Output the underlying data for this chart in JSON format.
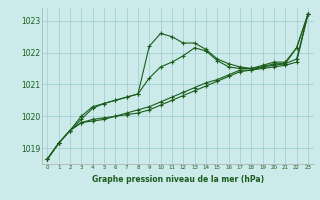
{
  "bg_color": "#cceaea",
  "grid_color": "#99cccc",
  "line_color": "#1a5c1a",
  "title": "Graphe pression niveau de la mer (hPa)",
  "xlim": [
    -0.5,
    23.5
  ],
  "ylim": [
    1018.5,
    1023.4
  ],
  "yticks": [
    1019,
    1020,
    1021,
    1022,
    1023
  ],
  "xticks": [
    0,
    1,
    2,
    3,
    4,
    5,
    6,
    7,
    8,
    9,
    10,
    11,
    12,
    13,
    14,
    15,
    16,
    17,
    18,
    19,
    20,
    21,
    22,
    23
  ],
  "series": [
    [
      1018.65,
      1019.15,
      1019.55,
      1019.8,
      1019.85,
      1019.9,
      1020.0,
      1020.05,
      1020.1,
      1020.2,
      1020.35,
      1020.5,
      1020.65,
      1020.8,
      1020.95,
      1021.1,
      1021.25,
      1021.4,
      1021.45,
      1021.5,
      1021.55,
      1021.6,
      1021.7,
      1023.2
    ],
    [
      1018.65,
      1019.15,
      1019.55,
      1019.8,
      1019.9,
      1019.95,
      1020.0,
      1020.1,
      1020.2,
      1020.3,
      1020.45,
      1020.6,
      1020.75,
      1020.9,
      1021.05,
      1021.15,
      1021.3,
      1021.45,
      1021.45,
      1021.55,
      1021.6,
      1021.65,
      1021.8,
      1023.2
    ],
    [
      1018.65,
      1019.15,
      1019.55,
      1020.0,
      1020.3,
      1020.4,
      1020.5,
      1020.6,
      1020.7,
      1021.2,
      1021.55,
      1021.7,
      1021.9,
      1022.15,
      1022.05,
      1021.75,
      1021.55,
      1021.5,
      1021.5,
      1021.55,
      1021.65,
      1021.65,
      1022.15,
      1023.2
    ],
    [
      1018.65,
      1019.15,
      1019.55,
      1019.9,
      1020.25,
      1020.4,
      1020.5,
      1020.6,
      1020.7,
      1022.2,
      1022.6,
      1022.5,
      1022.3,
      1022.3,
      1022.1,
      1021.8,
      1021.65,
      1021.55,
      1021.5,
      1021.6,
      1021.7,
      1021.7,
      1022.15,
      1023.2
    ]
  ]
}
